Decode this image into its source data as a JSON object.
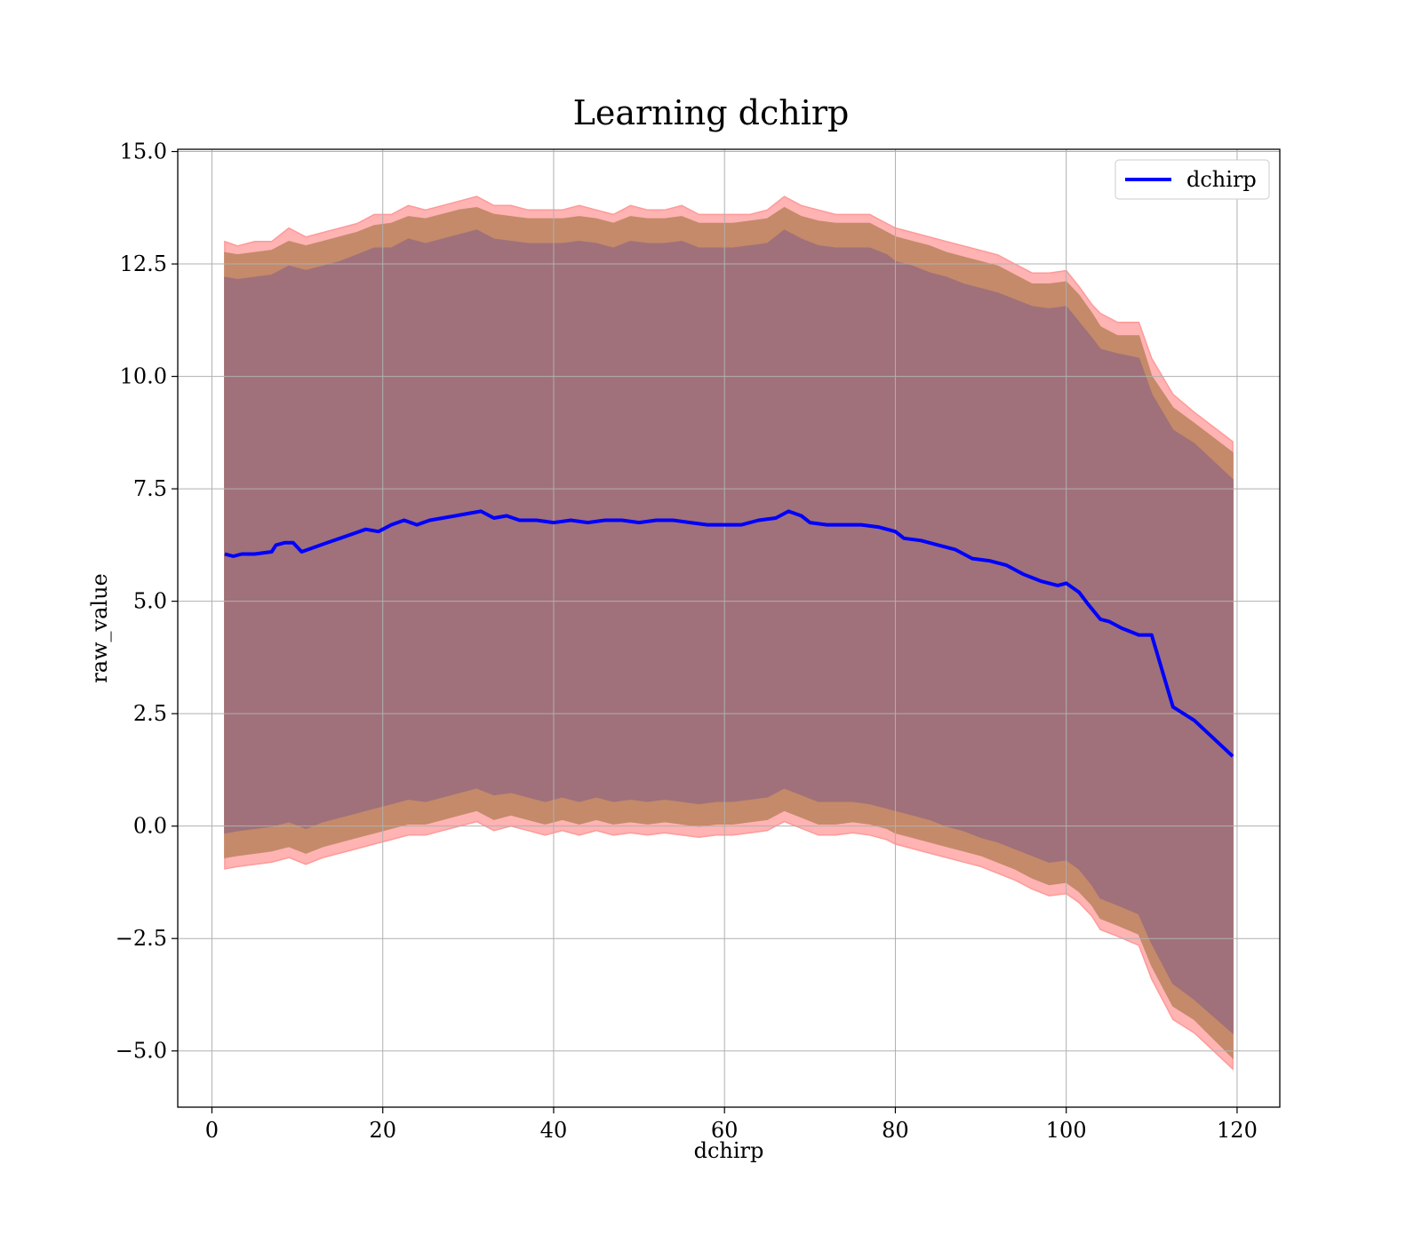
{
  "chart_data": {
    "type": "line",
    "title": "Learning dchirp",
    "xlabel": "dchirp",
    "ylabel": "raw_value",
    "xlim": [
      -4,
      125
    ],
    "ylim": [
      -6.25,
      15.05
    ],
    "xticks": [
      0,
      20,
      40,
      60,
      80,
      100,
      120
    ],
    "yticks": [
      -5.0,
      -2.5,
      0.0,
      2.5,
      5.0,
      7.5,
      10.0,
      12.5,
      15.0
    ],
    "xtick_labels": [
      "0",
      "20",
      "40",
      "60",
      "80",
      "100",
      "120"
    ],
    "ytick_labels": [
      "−5.0",
      "−2.5",
      "0.0",
      "2.5",
      "5.0",
      "7.5",
      "10.0",
      "12.5",
      "15.0"
    ],
    "grid": true,
    "legend": {
      "position": "top-right",
      "entries": [
        "dchirp"
      ]
    },
    "series": [
      {
        "name": "dchirp",
        "color": "#0000ff",
        "x": [
          1.5,
          2.5,
          3.5,
          5,
          7,
          7.5,
          8.5,
          9.5,
          10.5,
          12,
          13.5,
          15,
          16.5,
          18,
          19.5,
          21,
          22.5,
          24,
          25.5,
          27,
          28.5,
          30,
          31.5,
          33,
          34.5,
          36,
          38,
          40,
          42,
          44,
          46,
          48,
          50,
          52,
          54,
          56,
          58,
          60,
          62,
          64,
          66,
          67.5,
          69,
          70,
          72,
          74,
          76,
          78,
          80,
          81,
          83,
          85,
          87,
          89,
          91,
          93,
          95,
          97,
          99,
          100,
          101.5,
          102.5,
          104,
          105,
          106.5,
          108.5,
          110,
          112.5,
          115,
          119.5
        ],
        "values": [
          6.05,
          6.0,
          6.05,
          6.05,
          6.1,
          6.25,
          6.3,
          6.3,
          6.1,
          6.2,
          6.3,
          6.4,
          6.5,
          6.6,
          6.55,
          6.7,
          6.8,
          6.7,
          6.8,
          6.85,
          6.9,
          6.95,
          7.0,
          6.85,
          6.9,
          6.8,
          6.8,
          6.75,
          6.8,
          6.75,
          6.8,
          6.8,
          6.75,
          6.8,
          6.8,
          6.75,
          6.7,
          6.7,
          6.7,
          6.8,
          6.85,
          7.0,
          6.9,
          6.75,
          6.7,
          6.7,
          6.7,
          6.65,
          6.55,
          6.4,
          6.35,
          6.25,
          6.15,
          5.95,
          5.9,
          5.8,
          5.6,
          5.45,
          5.35,
          5.4,
          5.2,
          4.95,
          4.6,
          4.55,
          4.4,
          4.25,
          4.25,
          2.65,
          2.35,
          1.55
        ]
      }
    ],
    "bands": [
      {
        "name": "outer band",
        "color": "#ff9999",
        "x": [
          1.5,
          3,
          5,
          7,
          9,
          11,
          13,
          15,
          17,
          19,
          21,
          23,
          25,
          27,
          29,
          31,
          33,
          35,
          37,
          39,
          41,
          43,
          45,
          47,
          49,
          51,
          53,
          55,
          57,
          59,
          61,
          63,
          65,
          67,
          69,
          71,
          73,
          75,
          77,
          79,
          80,
          82,
          84,
          86,
          88,
          90,
          92,
          94,
          96,
          98,
          100,
          101.5,
          103,
          104,
          106,
          108.5,
          110,
          112.5,
          115,
          119.5
        ],
        "upper": [
          13.0,
          12.9,
          13.0,
          13.0,
          13.3,
          13.1,
          13.2,
          13.3,
          13.4,
          13.6,
          13.6,
          13.8,
          13.7,
          13.8,
          13.9,
          14.0,
          13.8,
          13.8,
          13.7,
          13.7,
          13.7,
          13.8,
          13.7,
          13.6,
          13.8,
          13.7,
          13.7,
          13.8,
          13.6,
          13.6,
          13.6,
          13.6,
          13.7,
          14.0,
          13.8,
          13.7,
          13.6,
          13.6,
          13.6,
          13.4,
          13.3,
          13.2,
          13.1,
          13.0,
          12.9,
          12.8,
          12.7,
          12.5,
          12.3,
          12.3,
          12.35,
          12.0,
          11.6,
          11.4,
          11.2,
          11.2,
          10.4,
          9.6,
          9.2,
          8.55
        ],
        "lower": [
          -0.95,
          -0.9,
          -0.85,
          -0.8,
          -0.7,
          -0.85,
          -0.7,
          -0.6,
          -0.5,
          -0.4,
          -0.3,
          -0.2,
          -0.2,
          -0.1,
          0.0,
          0.1,
          -0.1,
          0.0,
          -0.1,
          -0.2,
          -0.1,
          -0.2,
          -0.1,
          -0.2,
          -0.15,
          -0.2,
          -0.15,
          -0.2,
          -0.25,
          -0.2,
          -0.2,
          -0.15,
          -0.1,
          0.1,
          -0.05,
          -0.2,
          -0.2,
          -0.15,
          -0.2,
          -0.3,
          -0.4,
          -0.5,
          -0.6,
          -0.7,
          -0.8,
          -0.9,
          -1.05,
          -1.2,
          -1.4,
          -1.55,
          -1.5,
          -1.7,
          -2.0,
          -2.3,
          -2.45,
          -2.65,
          -3.4,
          -4.3,
          -4.6,
          -5.4
        ]
      },
      {
        "name": "middle band",
        "color": "#c48a6a",
        "x": [
          1.5,
          3,
          5,
          7,
          9,
          11,
          13,
          15,
          17,
          19,
          21,
          23,
          25,
          27,
          29,
          31,
          33,
          35,
          37,
          39,
          41,
          43,
          45,
          47,
          49,
          51,
          53,
          55,
          57,
          59,
          61,
          63,
          65,
          67,
          69,
          71,
          73,
          75,
          77,
          79,
          80,
          82,
          84,
          86,
          88,
          90,
          92,
          94,
          96,
          98,
          100,
          101.5,
          103,
          104,
          106,
          108.5,
          110,
          112.5,
          115,
          119.5
        ],
        "upper": [
          12.75,
          12.7,
          12.75,
          12.8,
          13.0,
          12.9,
          13.0,
          13.1,
          13.2,
          13.35,
          13.4,
          13.55,
          13.5,
          13.6,
          13.7,
          13.75,
          13.6,
          13.55,
          13.5,
          13.5,
          13.5,
          13.55,
          13.5,
          13.4,
          13.55,
          13.5,
          13.5,
          13.55,
          13.4,
          13.4,
          13.4,
          13.45,
          13.5,
          13.75,
          13.55,
          13.45,
          13.4,
          13.4,
          13.4,
          13.2,
          13.1,
          13.0,
          12.9,
          12.75,
          12.65,
          12.55,
          12.45,
          12.25,
          12.05,
          12.05,
          12.1,
          11.8,
          11.4,
          11.1,
          10.9,
          10.9,
          10.0,
          9.3,
          8.95,
          8.3
        ],
        "lower": [
          -0.7,
          -0.65,
          -0.6,
          -0.55,
          -0.45,
          -0.6,
          -0.45,
          -0.35,
          -0.25,
          -0.15,
          -0.05,
          0.05,
          0.05,
          0.15,
          0.25,
          0.35,
          0.15,
          0.25,
          0.15,
          0.05,
          0.15,
          0.05,
          0.15,
          0.05,
          0.1,
          0.05,
          0.1,
          0.05,
          0.0,
          0.05,
          0.05,
          0.1,
          0.15,
          0.35,
          0.2,
          0.05,
          0.05,
          0.1,
          0.05,
          -0.05,
          -0.15,
          -0.25,
          -0.35,
          -0.45,
          -0.55,
          -0.65,
          -0.8,
          -0.95,
          -1.15,
          -1.3,
          -1.25,
          -1.45,
          -1.75,
          -2.05,
          -2.2,
          -2.4,
          -3.1,
          -4.0,
          -4.3,
          -5.15
        ]
      },
      {
        "name": "inner band",
        "color": "#a0717a",
        "x": [
          1.5,
          3,
          5,
          7,
          9,
          11,
          13,
          15,
          17,
          19,
          21,
          23,
          25,
          27,
          29,
          31,
          33,
          35,
          37,
          39,
          41,
          43,
          45,
          47,
          49,
          51,
          53,
          55,
          57,
          59,
          61,
          63,
          65,
          67,
          69,
          71,
          73,
          75,
          77,
          79,
          80,
          82,
          84,
          86,
          88,
          90,
          92,
          94,
          96,
          98,
          100,
          101.5,
          103,
          104,
          106,
          108.5,
          110,
          112.5,
          115,
          119.5
        ],
        "upper": [
          12.2,
          12.15,
          12.2,
          12.25,
          12.45,
          12.35,
          12.45,
          12.55,
          12.7,
          12.85,
          12.85,
          13.05,
          12.95,
          13.05,
          13.15,
          13.25,
          13.05,
          13.0,
          12.95,
          12.95,
          12.95,
          13.0,
          12.95,
          12.85,
          13.0,
          12.95,
          12.95,
          13.0,
          12.85,
          12.85,
          12.85,
          12.9,
          12.95,
          13.25,
          13.05,
          12.9,
          12.85,
          12.85,
          12.85,
          12.7,
          12.55,
          12.45,
          12.3,
          12.2,
          12.05,
          11.95,
          11.85,
          11.7,
          11.55,
          11.5,
          11.55,
          11.2,
          10.85,
          10.6,
          10.5,
          10.4,
          9.6,
          8.8,
          8.5,
          7.7
        ],
        "lower": [
          -0.15,
          -0.1,
          -0.05,
          0.0,
          0.1,
          -0.05,
          0.1,
          0.2,
          0.3,
          0.4,
          0.5,
          0.6,
          0.55,
          0.65,
          0.75,
          0.85,
          0.7,
          0.75,
          0.65,
          0.55,
          0.65,
          0.55,
          0.65,
          0.55,
          0.6,
          0.55,
          0.6,
          0.55,
          0.5,
          0.55,
          0.55,
          0.6,
          0.65,
          0.85,
          0.7,
          0.55,
          0.55,
          0.55,
          0.5,
          0.4,
          0.35,
          0.25,
          0.15,
          0.0,
          -0.1,
          -0.25,
          -0.35,
          -0.5,
          -0.65,
          -0.8,
          -0.75,
          -0.95,
          -1.3,
          -1.6,
          -1.75,
          -1.95,
          -2.6,
          -3.5,
          -3.85,
          -4.6
        ]
      }
    ]
  }
}
